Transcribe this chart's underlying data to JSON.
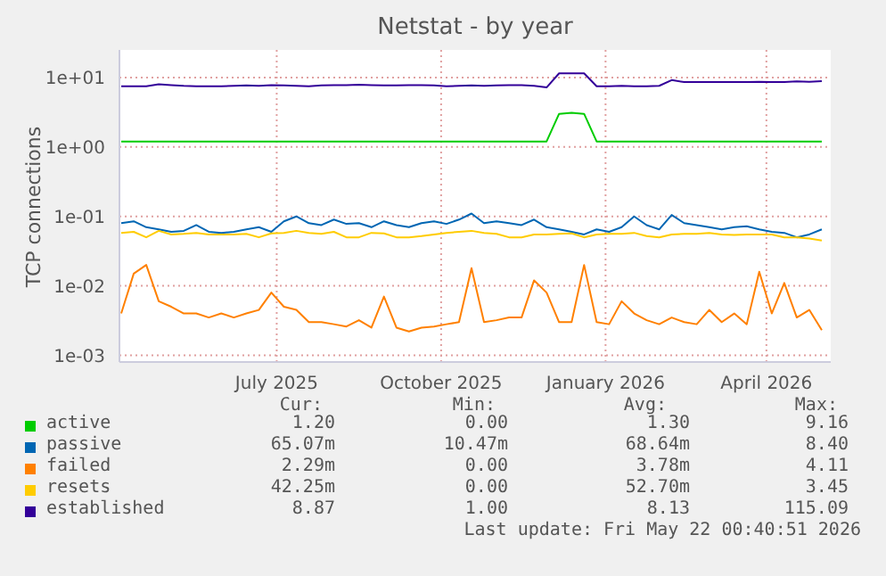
{
  "chart_data": {
    "type": "line",
    "title": "Netstat - by year",
    "ylabel": "TCP connections",
    "log": "y",
    "grid": true,
    "legend": "bottom",
    "marker": "none",
    "line_style": "solid",
    "xlim": [
      "2025-04-04",
      "2026-05-07"
    ],
    "xticks": [
      {
        "value": "2025-07-01",
        "label": "July 2025"
      },
      {
        "value": "2025-10-01",
        "label": "October 2025"
      },
      {
        "value": "2026-01-01",
        "label": "January 2026"
      },
      {
        "value": "2026-04-01",
        "label": "April 2026"
      }
    ],
    "ylim": [
      0.0008,
      25
    ],
    "yticks": [
      {
        "value": 0.001,
        "label": "1e-03"
      },
      {
        "value": 0.01,
        "label": "1e-02"
      },
      {
        "value": 0.1,
        "label": "1e-01"
      },
      {
        "value": 1,
        "label": "1e+00"
      },
      {
        "value": 10,
        "label": "1e+01"
      }
    ],
    "x": [
      "2025-04-05",
      "2025-04-12",
      "2025-04-19",
      "2025-04-26",
      "2025-05-03",
      "2025-05-10",
      "2025-05-17",
      "2025-05-24",
      "2025-05-31",
      "2025-06-07",
      "2025-06-14",
      "2025-06-21",
      "2025-06-28",
      "2025-07-05",
      "2025-07-12",
      "2025-07-19",
      "2025-07-26",
      "2025-08-02",
      "2025-08-09",
      "2025-08-16",
      "2025-08-23",
      "2025-08-30",
      "2025-09-06",
      "2025-09-13",
      "2025-09-20",
      "2025-09-27",
      "2025-10-04",
      "2025-10-11",
      "2025-10-18",
      "2025-10-25",
      "2025-11-01",
      "2025-11-08",
      "2025-11-15",
      "2025-11-22",
      "2025-11-29",
      "2025-12-06",
      "2025-12-13",
      "2025-12-20",
      "2025-12-27",
      "2026-01-03",
      "2026-01-10",
      "2026-01-17",
      "2026-01-24",
      "2026-01-31",
      "2026-02-07",
      "2026-02-14",
      "2026-02-21",
      "2026-02-28",
      "2026-03-07",
      "2026-03-14",
      "2026-03-21",
      "2026-03-28",
      "2026-04-04",
      "2026-04-11",
      "2026-04-18",
      "2026-04-25",
      "2026-05-02"
    ],
    "series": [
      {
        "name": "active",
        "color": "#00cc00",
        "values": [
          1.2,
          1.2,
          1.2,
          1.2,
          1.2,
          1.2,
          1.2,
          1.2,
          1.2,
          1.2,
          1.2,
          1.2,
          1.2,
          1.2,
          1.2,
          1.2,
          1.2,
          1.2,
          1.2,
          1.2,
          1.2,
          1.2,
          1.2,
          1.2,
          1.2,
          1.2,
          1.2,
          1.2,
          1.2,
          1.2,
          1.2,
          1.2,
          1.2,
          1.2,
          1.2,
          3.0,
          3.1,
          3.0,
          1.2,
          1.2,
          1.2,
          1.2,
          1.2,
          1.2,
          1.2,
          1.2,
          1.2,
          1.2,
          1.2,
          1.2,
          1.2,
          1.2,
          1.2,
          1.2,
          1.2,
          1.2,
          1.2
        ]
      },
      {
        "name": "passive",
        "color": "#0066b3",
        "values": [
          0.08,
          0.085,
          0.07,
          0.065,
          0.06,
          0.062,
          0.075,
          0.06,
          0.058,
          0.06,
          0.065,
          0.07,
          0.06,
          0.085,
          0.1,
          0.08,
          0.075,
          0.09,
          0.078,
          0.08,
          0.07,
          0.085,
          0.075,
          0.07,
          0.08,
          0.085,
          0.078,
          0.09,
          0.11,
          0.08,
          0.085,
          0.08,
          0.075,
          0.09,
          0.07,
          0.065,
          0.06,
          0.055,
          0.065,
          0.06,
          0.07,
          0.1,
          0.075,
          0.065,
          0.105,
          0.08,
          0.075,
          0.07,
          0.065,
          0.07,
          0.072,
          0.065,
          0.06,
          0.058,
          0.05,
          0.055,
          0.065
        ]
      },
      {
        "name": "failed",
        "color": "#ff8000",
        "values": [
          0.004,
          0.015,
          0.02,
          0.006,
          0.005,
          0.004,
          0.004,
          0.0035,
          0.004,
          0.0035,
          0.004,
          0.0045,
          0.008,
          0.005,
          0.0045,
          0.003,
          0.003,
          0.0028,
          0.0026,
          0.0032,
          0.0025,
          0.007,
          0.0025,
          0.0022,
          0.0025,
          0.0026,
          0.0028,
          0.003,
          0.018,
          0.003,
          0.0032,
          0.0035,
          0.0035,
          0.012,
          0.008,
          0.003,
          0.003,
          0.02,
          0.003,
          0.0028,
          0.006,
          0.004,
          0.0032,
          0.0028,
          0.0035,
          0.003,
          0.0028,
          0.0045,
          0.003,
          0.004,
          0.0028,
          0.016,
          0.004,
          0.011,
          0.0035,
          0.0045,
          0.0023
        ]
      },
      {
        "name": "resets",
        "color": "#ffcc00",
        "values": [
          0.058,
          0.06,
          0.05,
          0.062,
          0.055,
          0.056,
          0.058,
          0.055,
          0.055,
          0.055,
          0.056,
          0.05,
          0.057,
          0.058,
          0.062,
          0.058,
          0.056,
          0.06,
          0.05,
          0.05,
          0.058,
          0.057,
          0.05,
          0.05,
          0.052,
          0.055,
          0.058,
          0.06,
          0.062,
          0.058,
          0.056,
          0.05,
          0.05,
          0.055,
          0.055,
          0.056,
          0.057,
          0.05,
          0.055,
          0.056,
          0.056,
          0.058,
          0.052,
          0.05,
          0.055,
          0.056,
          0.056,
          0.058,
          0.055,
          0.054,
          0.055,
          0.055,
          0.055,
          0.05,
          0.05,
          0.048,
          0.045
        ]
      },
      {
        "name": "established",
        "color": "#330099",
        "values": [
          7.5,
          7.5,
          7.5,
          8,
          7.8,
          7.6,
          7.5,
          7.5,
          7.5,
          7.6,
          7.7,
          7.6,
          7.8,
          7.7,
          7.6,
          7.5,
          7.7,
          7.8,
          7.8,
          7.9,
          7.8,
          7.7,
          7.7,
          7.8,
          7.8,
          7.7,
          7.5,
          7.6,
          7.7,
          7.6,
          7.7,
          7.8,
          7.8,
          7.6,
          7.2,
          11.5,
          11.5,
          11.5,
          7.5,
          7.5,
          7.6,
          7.5,
          7.5,
          7.6,
          9.2,
          8.6,
          8.6,
          8.6,
          8.6,
          8.6,
          8.6,
          8.7,
          8.6,
          8.6,
          8.8,
          8.7,
          8.9
        ]
      }
    ],
    "annotations": [
      "Cur:",
      "Min:",
      "Avg:",
      "Max:",
      "1.20",
      "0.00",
      "1.30",
      "9.16",
      "65.07m",
      "10.47m",
      "68.64m",
      "8.40",
      "2.29m",
      "0.00",
      "3.78m",
      "4.11",
      "42.25m",
      "0.00",
      "52.70m",
      "3.45",
      "8.87",
      "1.00",
      "8.13",
      "115.09",
      "Last update: Fri May 22 00:40:51 2026"
    ]
  }
}
